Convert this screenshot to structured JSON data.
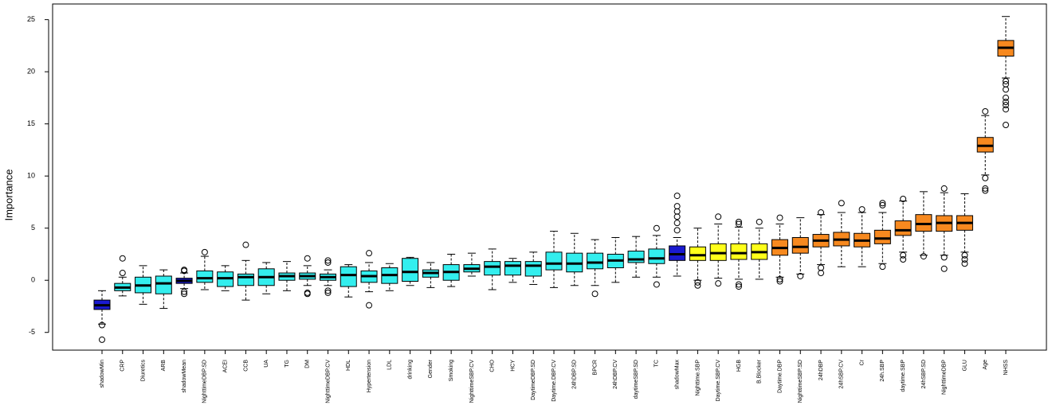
{
  "chart_data": {
    "type": "boxplot",
    "ylabel": "Importance",
    "ylim": [
      -6.7,
      26.5
    ],
    "yticks": [
      -5,
      0,
      5,
      10,
      15,
      20,
      25
    ],
    "categories": [
      "shadowMin",
      "CRP",
      "Diuretics",
      "ARB",
      "shadowMean",
      "NighttimeDBP.SD",
      "ACEI",
      "CCB",
      "UA",
      "TG",
      "DM",
      "NighttimeDBP.CV",
      "HDL",
      "Hypertension",
      "LDL",
      "drinking",
      "Gender",
      "Smoking",
      "NighttimeSBP.CV",
      "CHO",
      "HCY",
      "DaytimeDBP.SD",
      "Daytime.DBP.CV",
      "24hDBP.SD",
      "BPCR",
      "24hDBP.CV",
      "daytimeSBP.SD",
      "TC",
      "shadowMax",
      "Nighttime.SBP",
      "Daytime.SBP.CV",
      "HGB",
      "B.Blocker",
      "Daytime.DBP",
      "NighttimeSBP.SD",
      "24hDBP",
      "24hSBP.CV",
      "Cr",
      "24h.SBP",
      "daytime.SBP",
      "24hSBP.SD",
      "NighttimeDBP",
      "GLU",
      "Age",
      "NHSS"
    ],
    "colors": [
      "#1a1ad0",
      "#33eeee",
      "#33eeee",
      "#33eeee",
      "#1a1ad0",
      "#33eeee",
      "#33eeee",
      "#33eeee",
      "#33eeee",
      "#33eeee",
      "#33eeee",
      "#33eeee",
      "#33eeee",
      "#33eeee",
      "#33eeee",
      "#33eeee",
      "#33eeee",
      "#33eeee",
      "#33eeee",
      "#33eeee",
      "#33eeee",
      "#33eeee",
      "#33eeee",
      "#33eeee",
      "#33eeee",
      "#33eeee",
      "#33eeee",
      "#33eeee",
      "#1a1ad0",
      "#ffff1a",
      "#ffff1a",
      "#ffff1a",
      "#ffff1a",
      "#f7891f",
      "#f7891f",
      "#f7891f",
      "#f7891f",
      "#f7891f",
      "#f7891f",
      "#f7891f",
      "#f7891f",
      "#f7891f",
      "#f7891f",
      "#f7891f",
      "#f7891f"
    ],
    "min": [
      -4.2,
      -1.5,
      -2.3,
      -2.7,
      -0.8,
      -0.9,
      -1.0,
      -1.9,
      -1.3,
      -1.0,
      -0.5,
      -0.5,
      -1.6,
      -1.1,
      -1.0,
      -0.5,
      -0.7,
      -0.6,
      0.4,
      -0.9,
      -0.2,
      -0.4,
      -0.7,
      -0.5,
      -0.5,
      -0.2,
      0.3,
      0.3,
      0.4,
      0.0,
      0.2,
      0.1,
      0.1,
      0.3,
      0.6,
      1.5,
      1.3,
      1.3,
      1.6,
      2.7,
      2.4,
      2.4,
      2.7,
      10.1,
      19.4
    ],
    "q1": [
      -2.8,
      -1.0,
      -1.2,
      -1.3,
      -0.3,
      -0.2,
      -0.6,
      -0.5,
      -0.5,
      0.0,
      0.1,
      0.0,
      -0.6,
      -0.2,
      -0.3,
      -0.1,
      0.3,
      0.0,
      0.8,
      0.5,
      0.5,
      0.4,
      1.0,
      0.8,
      1.1,
      1.2,
      1.7,
      1.6,
      1.9,
      1.9,
      1.9,
      2.0,
      2.0,
      2.4,
      2.6,
      3.2,
      3.3,
      3.2,
      3.5,
      4.3,
      4.7,
      4.7,
      4.8,
      12.3,
      21.5
    ],
    "median": [
      -2.4,
      -0.7,
      -0.5,
      -0.3,
      -0.05,
      0.2,
      0.2,
      0.3,
      0.3,
      0.4,
      0.4,
      0.3,
      0.5,
      0.4,
      0.5,
      0.8,
      0.7,
      0.8,
      1.1,
      1.3,
      1.4,
      1.4,
      1.6,
      1.6,
      1.7,
      1.9,
      2.0,
      2.1,
      2.5,
      2.4,
      2.6,
      2.6,
      2.7,
      3.1,
      3.2,
      3.8,
      3.9,
      3.8,
      4.0,
      4.8,
      5.4,
      5.5,
      5.5,
      12.9,
      22.3
    ],
    "q3": [
      -1.9,
      -0.3,
      0.3,
      0.4,
      0.2,
      0.9,
      0.8,
      0.6,
      1.1,
      0.7,
      0.7,
      0.6,
      1.3,
      0.9,
      1.2,
      2.1,
      1.0,
      1.5,
      1.5,
      1.8,
      1.8,
      1.8,
      2.7,
      2.6,
      2.6,
      2.5,
      2.8,
      3.0,
      3.3,
      3.2,
      3.5,
      3.5,
      3.5,
      3.9,
      4.1,
      4.4,
      4.6,
      4.5,
      4.8,
      5.7,
      6.3,
      6.2,
      6.2,
      13.7,
      23.0
    ],
    "max": [
      -1.0,
      0.3,
      1.4,
      1.0,
      0.7,
      2.3,
      1.4,
      1.9,
      1.7,
      1.8,
      1.4,
      1.0,
      1.5,
      1.7,
      1.6,
      2.2,
      1.7,
      2.5,
      2.6,
      3.0,
      2.1,
      2.7,
      4.7,
      4.5,
      3.9,
      4.1,
      4.2,
      4.3,
      4.1,
      5.0,
      5.4,
      5.1,
      5.0,
      5.4,
      6.0,
      6.3,
      6.5,
      6.5,
      6.5,
      7.6,
      8.5,
      8.4,
      8.3,
      15.8,
      25.3
    ],
    "outliers": [
      [
        -4.3,
        -5.7
      ],
      [
        0.7,
        2.1
      ],
      [],
      [],
      [
        1.0,
        0.9,
        -1.1,
        -1.3
      ],
      [
        2.7
      ],
      [],
      [
        3.4
      ],
      [],
      [],
      [
        2.1,
        -1.2,
        -1.3
      ],
      [
        1.9,
        1.7,
        -1.0,
        -1.2
      ],
      [],
      [
        2.6,
        -2.4
      ],
      [],
      [],
      [],
      [],
      [],
      [],
      [],
      [],
      [],
      [],
      [
        -1.3
      ],
      [],
      [],
      [
        5.0,
        -0.4
      ],
      [
        8.1,
        7.1,
        6.6,
        6.1,
        5.5,
        4.8
      ],
      [
        -0.2,
        -0.5
      ],
      [
        6.1,
        -0.3
      ],
      [
        5.6,
        5.4,
        -0.4,
        -0.6
      ],
      [
        5.6
      ],
      [
        6.0,
        0.1,
        -0.1
      ],
      [
        0.4
      ],
      [
        6.5,
        0.7,
        1.2
      ],
      [
        7.4
      ],
      [
        6.8
      ],
      [
        7.4,
        7.2,
        1.3
      ],
      [
        7.8,
        2.4,
        2.0
      ],
      [
        2.3
      ],
      [
        8.8,
        2.2,
        1.1
      ],
      [
        2.4,
        2.0,
        1.6
      ],
      [
        16.2,
        9.8,
        8.8,
        8.6
      ],
      [
        19.1,
        18.8,
        18.3,
        17.5,
        17.1,
        16.8,
        16.4,
        14.9
      ]
    ]
  }
}
